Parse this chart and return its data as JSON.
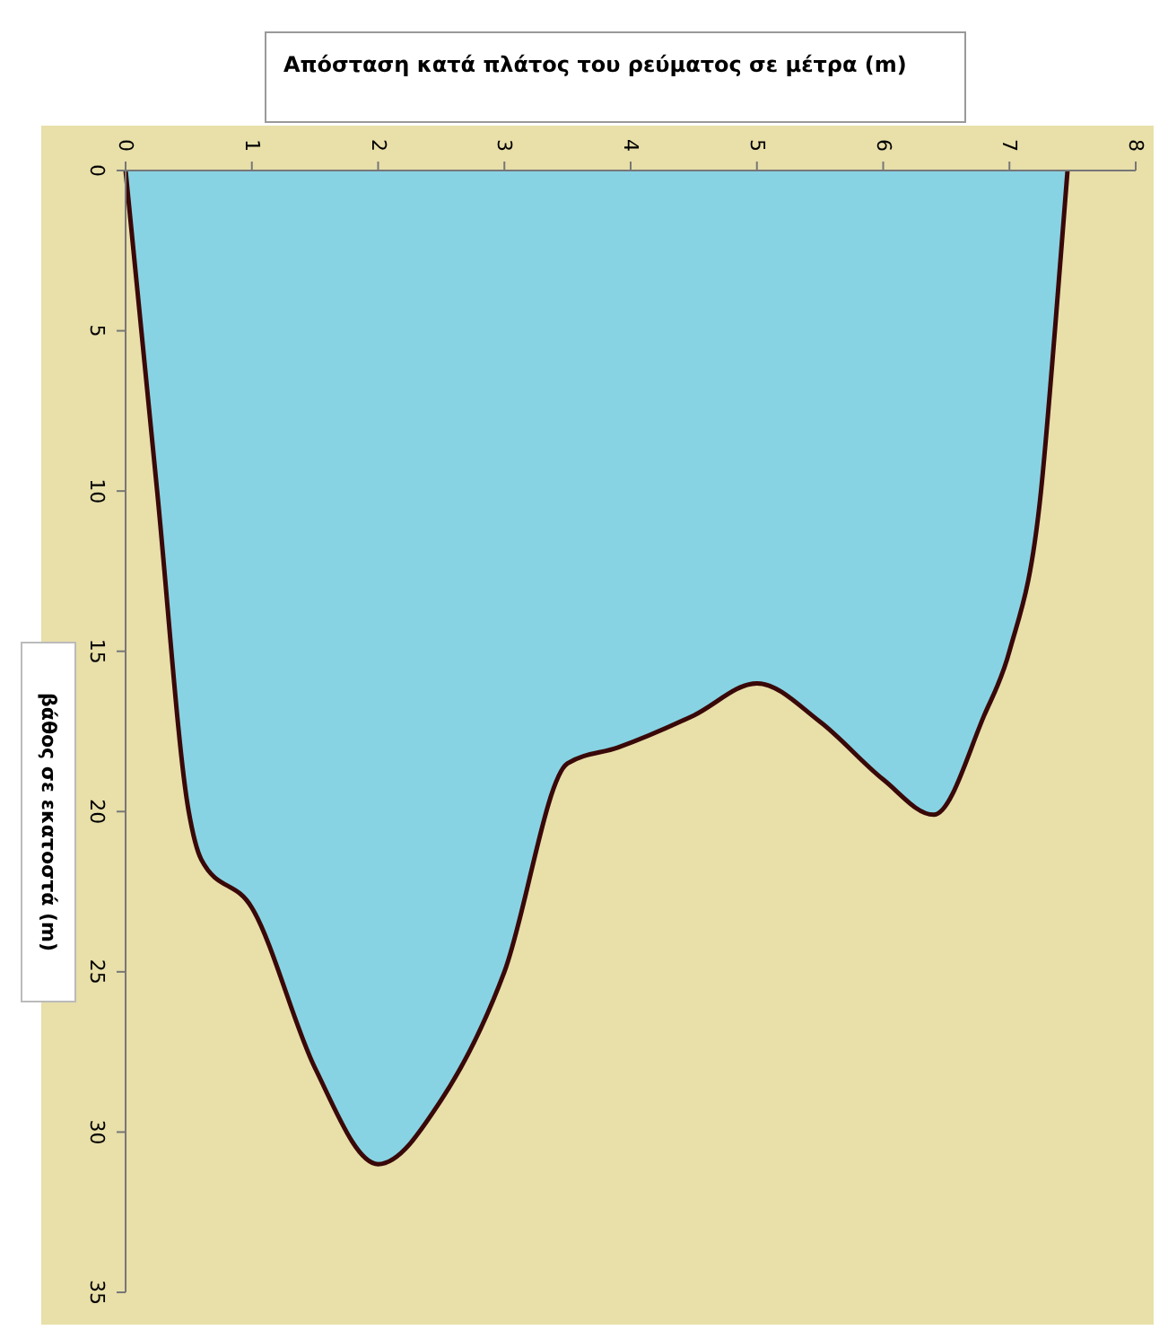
{
  "chart_data": {
    "type": "area",
    "xlabel": "Απόσταση κατά πλάτος του ρεύματος σε μέτρα (m)",
    "ylabel": "βάθος σε εκατοστά (m)",
    "x": [
      0,
      0.25,
      0.5,
      0.6,
      1,
      1.5,
      2,
      2.5,
      3,
      3.5,
      3.9,
      4.5,
      5,
      5.5,
      6,
      6.4,
      6.8,
      7,
      7.25,
      7.36,
      7.46
    ],
    "series": [
      {
        "color": "#87d3e3",
        "values": [
          0,
          10,
          20,
          21.5,
          23,
          28,
          31,
          29,
          25,
          18.5,
          18,
          17,
          16,
          17.2,
          19,
          20.1,
          17,
          15,
          10,
          5,
          0
        ]
      }
    ],
    "xlim": [
      0,
      8
    ],
    "xticks": [
      0,
      1,
      2,
      3,
      4,
      5,
      6,
      7,
      8
    ],
    "ylim": [
      35,
      0
    ],
    "yticks": [
      0,
      5,
      10,
      15,
      20,
      25,
      30,
      35
    ],
    "grid": false
  }
}
